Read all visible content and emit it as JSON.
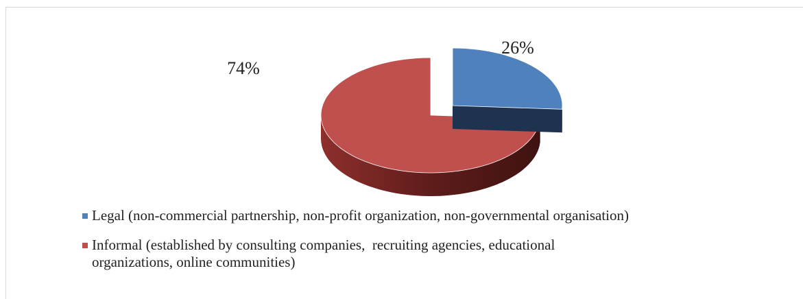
{
  "chart_data": {
    "type": "pie",
    "categories": [
      "Legal (non-commercial partnership, non-profit organization, non-governmental organisation)",
      "Informal (established by consulting companies,  recruiting agencies, educational organizations, online communities)"
    ],
    "values": [
      26,
      74
    ],
    "value_labels": [
      "26%",
      "74%"
    ],
    "colors": [
      "#4f81bd",
      "#c0504d"
    ],
    "side_colors": [
      "#1f3350",
      "#7a2624"
    ],
    "legend": "bottom"
  }
}
